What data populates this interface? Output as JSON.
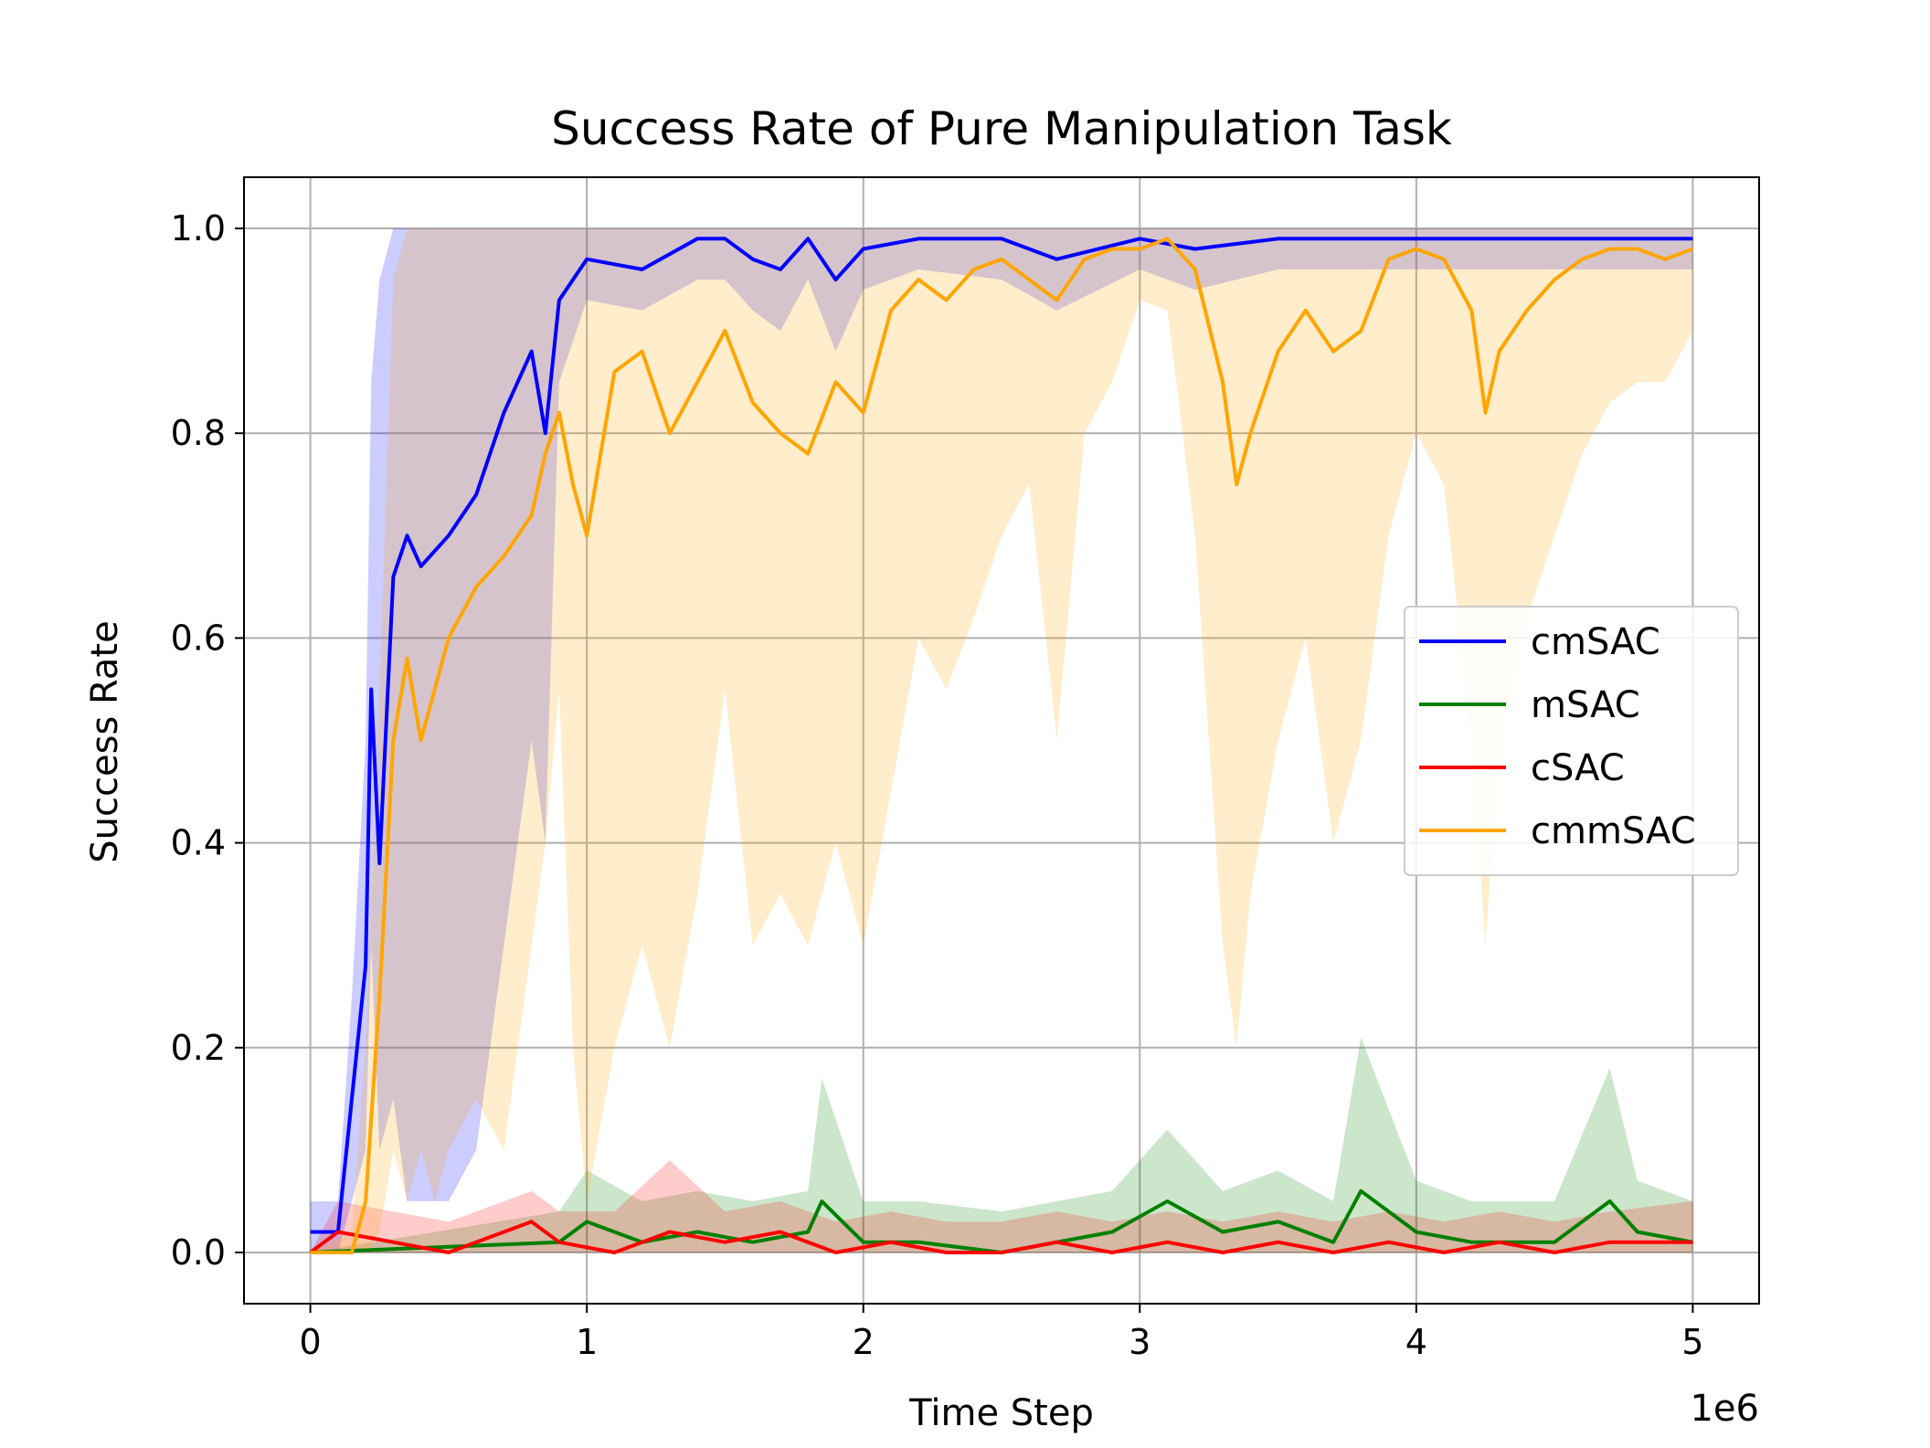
{
  "chart_data": {
    "type": "line",
    "title": "Success Rate of Pure Manipulation Task",
    "xlabel": "Time Step",
    "ylabel": "Success Rate",
    "x_offset_label": "1e6",
    "xlim": [
      -0.24,
      5.24
    ],
    "ylim": [
      -0.05,
      1.05
    ],
    "x_ticks": [
      0,
      1,
      2,
      3,
      4,
      5
    ],
    "x_tick_labels": [
      "0",
      "1",
      "2",
      "3",
      "4",
      "5"
    ],
    "y_ticks": [
      0.0,
      0.2,
      0.4,
      0.6,
      0.8,
      1.0
    ],
    "y_tick_labels": [
      "0.0",
      "0.2",
      "0.4",
      "0.6",
      "0.8",
      "1.0"
    ],
    "grid": true,
    "legend_position": "center-right",
    "series": [
      {
        "name": "cmSAC",
        "color": "#0000ff",
        "x": [
          0,
          0.1,
          0.15,
          0.2,
          0.22,
          0.25,
          0.3,
          0.35,
          0.4,
          0.5,
          0.6,
          0.7,
          0.8,
          0.85,
          0.9,
          1.0,
          1.2,
          1.4,
          1.5,
          1.6,
          1.7,
          1.8,
          1.9,
          2.0,
          2.2,
          2.5,
          2.7,
          3.0,
          3.2,
          3.5,
          4.0,
          4.5,
          5.0
        ],
        "values": [
          0.02,
          0.02,
          0.15,
          0.28,
          0.55,
          0.38,
          0.66,
          0.7,
          0.67,
          0.7,
          0.74,
          0.82,
          0.88,
          0.8,
          0.93,
          0.97,
          0.96,
          0.99,
          0.99,
          0.97,
          0.96,
          0.99,
          0.95,
          0.98,
          0.99,
          0.99,
          0.97,
          0.99,
          0.98,
          0.99,
          0.99,
          0.99,
          0.99
        ],
        "upper": [
          0.05,
          0.05,
          0.25,
          0.5,
          0.85,
          0.95,
          1.0,
          1.0,
          1.0,
          1.0,
          1.0,
          1.0,
          1.0,
          1.0,
          1.0,
          1.0,
          1.0,
          1.0,
          1.0,
          1.0,
          1.0,
          1.0,
          1.0,
          1.0,
          1.0,
          1.0,
          1.0,
          1.0,
          1.0,
          1.0,
          1.0,
          1.0,
          1.0
        ],
        "lower": [
          0.0,
          0.0,
          0.05,
          0.1,
          0.3,
          0.1,
          0.15,
          0.05,
          0.05,
          0.05,
          0.1,
          0.3,
          0.5,
          0.4,
          0.85,
          0.93,
          0.92,
          0.95,
          0.95,
          0.92,
          0.9,
          0.95,
          0.88,
          0.94,
          0.96,
          0.95,
          0.92,
          0.96,
          0.94,
          0.96,
          0.96,
          0.96,
          0.96
        ]
      },
      {
        "name": "mSAC",
        "color": "#008000",
        "x": [
          0,
          0.9,
          1.0,
          1.2,
          1.4,
          1.6,
          1.8,
          1.85,
          2.0,
          2.2,
          2.5,
          2.7,
          2.9,
          3.1,
          3.3,
          3.5,
          3.7,
          3.8,
          4.0,
          4.2,
          4.5,
          4.7,
          4.8,
          5.0
        ],
        "values": [
          0.0,
          0.01,
          0.03,
          0.01,
          0.02,
          0.01,
          0.02,
          0.05,
          0.01,
          0.01,
          0.0,
          0.01,
          0.02,
          0.05,
          0.02,
          0.03,
          0.01,
          0.06,
          0.02,
          0.01,
          0.01,
          0.05,
          0.02,
          0.01
        ],
        "upper": [
          0.0,
          0.04,
          0.08,
          0.05,
          0.06,
          0.05,
          0.06,
          0.17,
          0.05,
          0.05,
          0.04,
          0.05,
          0.06,
          0.12,
          0.06,
          0.08,
          0.05,
          0.21,
          0.07,
          0.05,
          0.05,
          0.18,
          0.07,
          0.05
        ],
        "lower": [
          0.0,
          0.0,
          0.0,
          0.0,
          0.0,
          0.0,
          0.0,
          0.0,
          0.0,
          0.0,
          0.0,
          0.0,
          0.0,
          0.0,
          0.0,
          0.0,
          0.0,
          0.0,
          0.0,
          0.0,
          0.0,
          0.0,
          0.0,
          0.0
        ]
      },
      {
        "name": "cSAC",
        "color": "#ff0000",
        "x": [
          0,
          0.1,
          0.3,
          0.5,
          0.7,
          0.8,
          0.9,
          1.1,
          1.3,
          1.5,
          1.7,
          1.9,
          2.1,
          2.3,
          2.5,
          2.7,
          2.9,
          3.1,
          3.3,
          3.5,
          3.7,
          3.9,
          4.1,
          4.3,
          4.5,
          4.7,
          5.0
        ],
        "values": [
          0.0,
          0.02,
          0.01,
          0.0,
          0.02,
          0.03,
          0.01,
          0.0,
          0.02,
          0.01,
          0.02,
          0.0,
          0.01,
          0.0,
          0.0,
          0.01,
          0.0,
          0.01,
          0.0,
          0.01,
          0.0,
          0.01,
          0.0,
          0.01,
          0.0,
          0.01,
          0.01
        ],
        "upper": [
          0.0,
          0.05,
          0.04,
          0.03,
          0.05,
          0.06,
          0.04,
          0.04,
          0.09,
          0.04,
          0.05,
          0.03,
          0.04,
          0.03,
          0.03,
          0.04,
          0.03,
          0.04,
          0.03,
          0.04,
          0.03,
          0.04,
          0.03,
          0.04,
          0.03,
          0.04,
          0.05
        ],
        "lower": [
          0.0,
          0.0,
          0.0,
          0.0,
          0.0,
          0.0,
          0.0,
          0.0,
          0.0,
          0.0,
          0.0,
          0.0,
          0.0,
          0.0,
          0.0,
          0.0,
          0.0,
          0.0,
          0.0,
          0.0,
          0.0,
          0.0,
          0.0,
          0.0,
          0.0,
          0.0,
          0.0
        ]
      },
      {
        "name": "cmmSAC",
        "color": "#ffa500",
        "x": [
          0,
          0.15,
          0.2,
          0.25,
          0.3,
          0.35,
          0.4,
          0.45,
          0.5,
          0.6,
          0.7,
          0.8,
          0.85,
          0.9,
          0.95,
          1.0,
          1.1,
          1.2,
          1.3,
          1.4,
          1.5,
          1.6,
          1.7,
          1.8,
          1.9,
          2.0,
          2.1,
          2.2,
          2.3,
          2.4,
          2.5,
          2.6,
          2.7,
          2.8,
          2.9,
          3.0,
          3.1,
          3.2,
          3.3,
          3.35,
          3.4,
          3.5,
          3.6,
          3.7,
          3.8,
          3.9,
          4.0,
          4.1,
          4.2,
          4.25,
          4.3,
          4.4,
          4.5,
          4.6,
          4.7,
          4.8,
          4.9,
          5.0
        ],
        "values": [
          0.0,
          0.0,
          0.05,
          0.25,
          0.5,
          0.58,
          0.5,
          0.55,
          0.6,
          0.65,
          0.68,
          0.72,
          0.78,
          0.82,
          0.75,
          0.7,
          0.86,
          0.88,
          0.8,
          0.85,
          0.9,
          0.83,
          0.8,
          0.78,
          0.85,
          0.82,
          0.92,
          0.95,
          0.93,
          0.96,
          0.97,
          0.95,
          0.93,
          0.97,
          0.98,
          0.98,
          0.99,
          0.96,
          0.85,
          0.75,
          0.8,
          0.88,
          0.92,
          0.88,
          0.9,
          0.97,
          0.98,
          0.97,
          0.92,
          0.82,
          0.88,
          0.92,
          0.95,
          0.97,
          0.98,
          0.98,
          0.97,
          0.98
        ],
        "upper": [
          0.0,
          0.02,
          0.2,
          0.55,
          0.95,
          1.0,
          1.0,
          1.0,
          1.0,
          1.0,
          1.0,
          1.0,
          1.0,
          1.0,
          1.0,
          1.0,
          1.0,
          1.0,
          1.0,
          1.0,
          1.0,
          1.0,
          1.0,
          1.0,
          1.0,
          1.0,
          1.0,
          1.0,
          1.0,
          1.0,
          1.0,
          1.0,
          1.0,
          1.0,
          1.0,
          1.0,
          1.0,
          1.0,
          1.0,
          1.0,
          1.0,
          1.0,
          1.0,
          1.0,
          1.0,
          1.0,
          1.0,
          1.0,
          1.0,
          1.0,
          1.0,
          1.0,
          1.0,
          1.0,
          1.0,
          1.0,
          1.0,
          1.0
        ],
        "lower": [
          0.0,
          0.0,
          0.0,
          0.02,
          0.1,
          0.05,
          0.1,
          0.05,
          0.1,
          0.15,
          0.1,
          0.3,
          0.4,
          0.55,
          0.2,
          0.05,
          0.2,
          0.3,
          0.2,
          0.35,
          0.55,
          0.3,
          0.35,
          0.3,
          0.4,
          0.3,
          0.45,
          0.6,
          0.55,
          0.62,
          0.7,
          0.75,
          0.5,
          0.8,
          0.85,
          0.93,
          0.92,
          0.7,
          0.3,
          0.2,
          0.35,
          0.5,
          0.6,
          0.4,
          0.5,
          0.7,
          0.8,
          0.75,
          0.5,
          0.3,
          0.5,
          0.62,
          0.7,
          0.78,
          0.83,
          0.85,
          0.85,
          0.9
        ]
      }
    ]
  }
}
